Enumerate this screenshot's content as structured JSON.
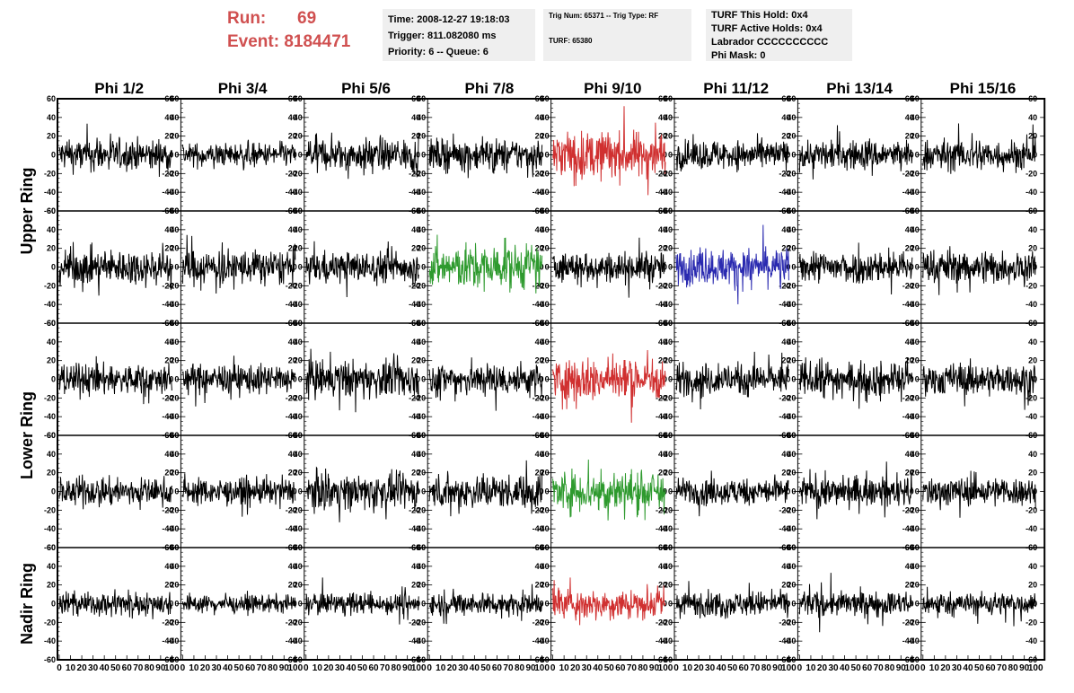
{
  "header": {
    "run_label": "Run:",
    "run_value": "69",
    "event_label": "Event:",
    "event_value": "8184471",
    "time": "Time: 2008-12-27 19:18:03",
    "trigger": "Trigger: 811.082080 ms",
    "priority": "Priority: 6 -- Queue: 6",
    "trig_num": "Trig Num: 65371 -- Trig Type: RF",
    "turf": "TURF: 65380",
    "turf_this_hold": "TURF This Hold: 0x4",
    "turf_active_holds": "TURF Active Holds: 0x4",
    "labrador": "Labrador CCCCCCCCCC",
    "phi_mask": "Phi Mask: 0"
  },
  "columns": [
    "Phi 1/2",
    "Phi 3/4",
    "Phi 5/6",
    "Phi 7/8",
    "Phi 9/10",
    "Phi 11/12",
    "Phi 13/14",
    "Phi 15/16"
  ],
  "ring_labels": [
    "Upper Ring",
    "Lower Ring",
    "Nadir Ring"
  ],
  "colors": {
    "default": "#000000",
    "red": "#d03030",
    "green": "#2e9a2e",
    "blue": "#2a2ab0",
    "header_red": "#d05050",
    "infobox_bg": "#efefef"
  },
  "chart_data": {
    "type": "line",
    "rows": 5,
    "cols": 8,
    "ylim": [
      -60,
      60
    ],
    "xlim": [
      0,
      100
    ],
    "y_ticks": [
      "60",
      "40",
      "20",
      "0",
      "-20",
      "-40",
      "-60"
    ],
    "x_tick_labels": [
      "0",
      "10",
      "20",
      "30",
      "40",
      "50",
      "60",
      "70",
      "80",
      "90",
      "100"
    ],
    "samples": 260,
    "panels": [
      {
        "row": 0,
        "col": 0,
        "color": "default",
        "amp": 15
      },
      {
        "row": 0,
        "col": 1,
        "color": "default",
        "amp": 11
      },
      {
        "row": 0,
        "col": 2,
        "color": "default",
        "amp": 15
      },
      {
        "row": 0,
        "col": 3,
        "color": "default",
        "amp": 15
      },
      {
        "row": 0,
        "col": 4,
        "color": "red",
        "amp": 22
      },
      {
        "row": 0,
        "col": 5,
        "color": "default",
        "amp": 14
      },
      {
        "row": 0,
        "col": 6,
        "color": "default",
        "amp": 14
      },
      {
        "row": 0,
        "col": 7,
        "color": "default",
        "amp": 15
      },
      {
        "row": 1,
        "col": 0,
        "color": "default",
        "amp": 17
      },
      {
        "row": 1,
        "col": 1,
        "color": "default",
        "amp": 17
      },
      {
        "row": 1,
        "col": 2,
        "color": "default",
        "amp": 15
      },
      {
        "row": 1,
        "col": 3,
        "color": "green",
        "amp": 21
      },
      {
        "row": 1,
        "col": 4,
        "color": "default",
        "amp": 14
      },
      {
        "row": 1,
        "col": 5,
        "color": "blue",
        "amp": 17
      },
      {
        "row": 1,
        "col": 6,
        "color": "default",
        "amp": 15
      },
      {
        "row": 1,
        "col": 7,
        "color": "default",
        "amp": 16
      },
      {
        "row": 2,
        "col": 0,
        "color": "default",
        "amp": 15
      },
      {
        "row": 2,
        "col": 1,
        "color": "default",
        "amp": 14
      },
      {
        "row": 2,
        "col": 2,
        "color": "default",
        "amp": 18
      },
      {
        "row": 2,
        "col": 3,
        "color": "default",
        "amp": 16
      },
      {
        "row": 2,
        "col": 4,
        "color": "red",
        "amp": 20
      },
      {
        "row": 2,
        "col": 5,
        "color": "default",
        "amp": 15
      },
      {
        "row": 2,
        "col": 6,
        "color": "default",
        "amp": 16
      },
      {
        "row": 2,
        "col": 7,
        "color": "default",
        "amp": 15
      },
      {
        "row": 3,
        "col": 0,
        "color": "default",
        "amp": 13
      },
      {
        "row": 3,
        "col": 1,
        "color": "default",
        "amp": 12
      },
      {
        "row": 3,
        "col": 2,
        "color": "default",
        "amp": 16
      },
      {
        "row": 3,
        "col": 3,
        "color": "default",
        "amp": 16
      },
      {
        "row": 3,
        "col": 4,
        "color": "green",
        "amp": 20
      },
      {
        "row": 3,
        "col": 5,
        "color": "default",
        "amp": 13
      },
      {
        "row": 3,
        "col": 6,
        "color": "default",
        "amp": 14
      },
      {
        "row": 3,
        "col": 7,
        "color": "default",
        "amp": 14
      },
      {
        "row": 4,
        "col": 0,
        "color": "default",
        "amp": 11
      },
      {
        "row": 4,
        "col": 1,
        "color": "default",
        "amp": 8
      },
      {
        "row": 4,
        "col": 2,
        "color": "default",
        "amp": 10
      },
      {
        "row": 4,
        "col": 3,
        "color": "default",
        "amp": 11
      },
      {
        "row": 4,
        "col": 4,
        "color": "red",
        "amp": 14
      },
      {
        "row": 4,
        "col": 5,
        "color": "default",
        "amp": 12
      },
      {
        "row": 4,
        "col": 6,
        "color": "default",
        "amp": 12
      },
      {
        "row": 4,
        "col": 7,
        "color": "default",
        "amp": 11
      }
    ]
  }
}
